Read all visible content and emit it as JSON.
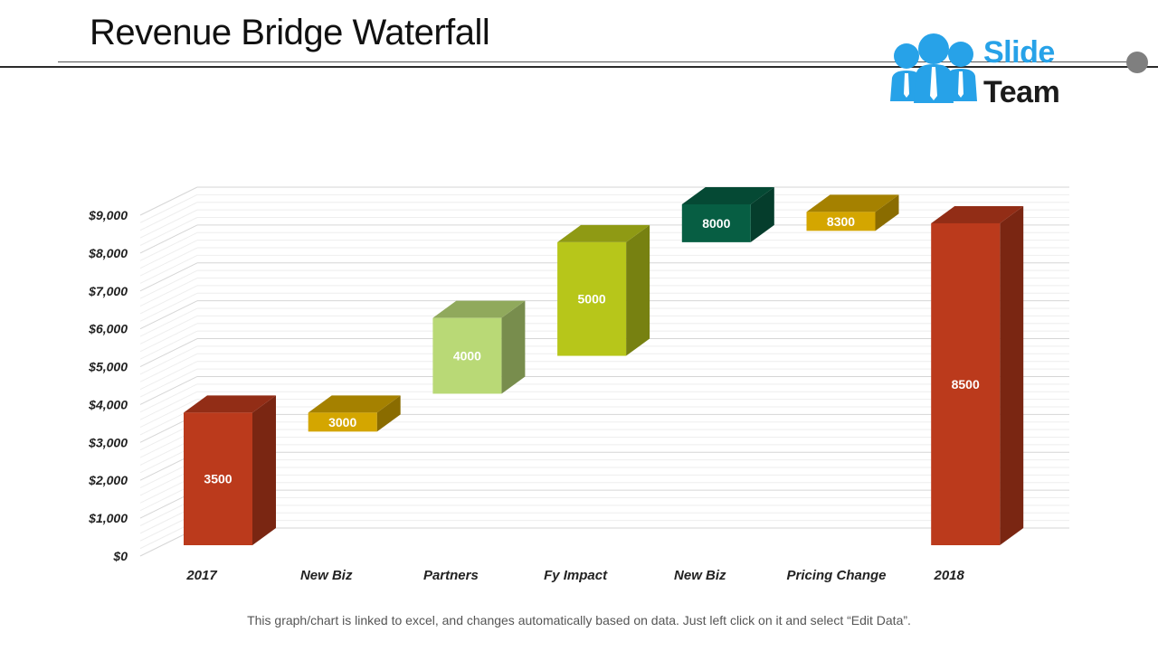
{
  "header": {
    "title": "Revenue Bridge Waterfall"
  },
  "logo": {
    "word1": "Slide",
    "word2": "Team",
    "accent_color": "#27a2e8"
  },
  "footer": {
    "note": "This graph/chart is linked to excel, and changes automatically  based on data. Just left click on it and select “Edit Data”."
  },
  "chart_data": {
    "type": "bar",
    "subtype": "waterfall-3d",
    "categories": [
      "2017",
      "New Biz",
      "Partners",
      "Fy Impact",
      "New Biz",
      "Pricing Change",
      "2018"
    ],
    "bars": [
      {
        "label": "3500",
        "base": 0,
        "top": 3500,
        "color": "#bb3a1c"
      },
      {
        "label": "3000",
        "base": 3000,
        "top": 3500,
        "color": "#d4a600"
      },
      {
        "label": "4000",
        "base": 4000,
        "top": 6000,
        "color": "#b9d976"
      },
      {
        "label": "5000",
        "base": 5000,
        "top": 8000,
        "color": "#b7c61a"
      },
      {
        "label": "8000",
        "base": 8000,
        "top": 9000,
        "color": "#075e43"
      },
      {
        "label": "8300",
        "base": 8300,
        "top": 8800,
        "color": "#d4a600"
      },
      {
        "label": "8500",
        "base": 0,
        "top": 8500,
        "color": "#bb3a1c"
      }
    ],
    "ylim": [
      0,
      9000
    ],
    "yticks": [
      0,
      1000,
      2000,
      3000,
      4000,
      5000,
      6000,
      7000,
      8000,
      9000
    ],
    "ytick_labels": [
      "$0",
      "$1,000",
      "$2,000",
      "$3,000",
      "$4,000",
      "$5,000",
      "$6,000",
      "$7,000",
      "$8,000",
      "$9,000"
    ],
    "grid": true,
    "legend": "none"
  }
}
